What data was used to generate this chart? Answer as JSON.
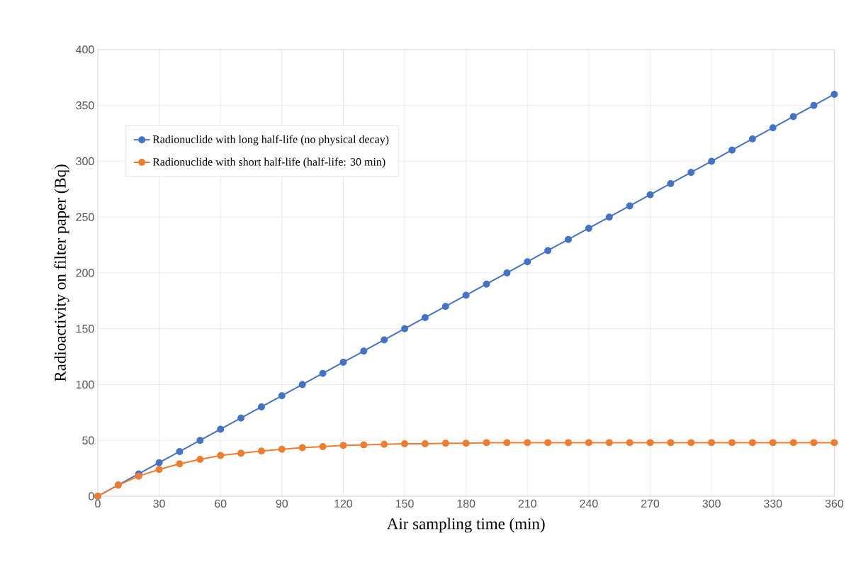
{
  "chart_data": {
    "type": "line",
    "xlabel": "Air sampling time (min)",
    "ylabel": "Radioactivity on filter paper (Bq)",
    "x": [
      0,
      10,
      20,
      30,
      40,
      50,
      60,
      70,
      80,
      90,
      100,
      110,
      120,
      130,
      140,
      150,
      160,
      170,
      180,
      190,
      200,
      210,
      220,
      230,
      240,
      250,
      260,
      270,
      280,
      290,
      300,
      310,
      320,
      330,
      340,
      350,
      360
    ],
    "series": [
      {
        "name": "Radionuclide with long half-life (no physical decay)",
        "color": "#4472c4",
        "values": [
          0,
          10,
          20,
          30,
          40,
          50,
          60,
          70,
          80,
          90,
          100,
          110,
          120,
          130,
          140,
          150,
          160,
          170,
          180,
          190,
          200,
          210,
          220,
          230,
          240,
          250,
          260,
          270,
          280,
          290,
          300,
          310,
          320,
          330,
          340,
          350,
          360
        ]
      },
      {
        "name": "Radionuclide with short half-life (half-life: 30 min)",
        "color": "#ed7d31",
        "values": [
          0,
          10,
          18,
          24,
          29,
          33,
          36.5,
          38.5,
          40.5,
          42,
          43.5,
          44.5,
          45.5,
          46,
          46.5,
          47,
          47,
          47.5,
          47.5,
          48,
          48,
          48,
          48,
          48,
          48,
          48,
          48,
          48,
          48,
          48,
          48,
          48,
          48,
          48,
          48,
          48,
          48
        ]
      }
    ],
    "xlim": [
      0,
      360
    ],
    "xticks": [
      0,
      30,
      60,
      90,
      120,
      150,
      180,
      210,
      240,
      270,
      300,
      330,
      360
    ],
    "ylim": [
      0,
      400
    ],
    "yticks": [
      0,
      50,
      100,
      150,
      200,
      250,
      300,
      350,
      400
    ],
    "grid": true,
    "legend": "top left",
    "marker": "circle",
    "line_style": "solid"
  }
}
